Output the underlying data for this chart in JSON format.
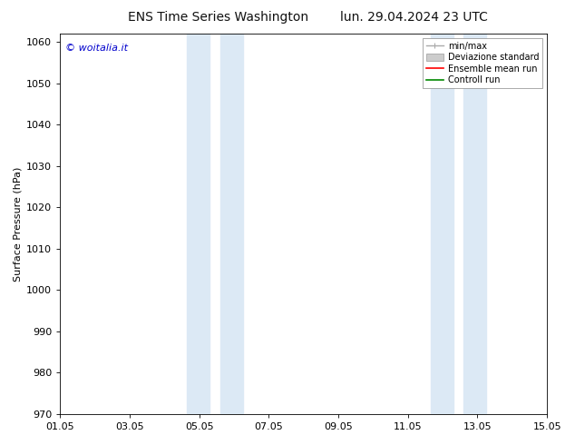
{
  "title_left": "ENS Time Series Washington",
  "title_right": "lun. 29.04.2024 23 UTC",
  "ylabel": "Surface Pressure (hPa)",
  "ylim": [
    970,
    1062
  ],
  "yticks": [
    970,
    980,
    990,
    1000,
    1010,
    1020,
    1030,
    1040,
    1050,
    1060
  ],
  "xtick_labels": [
    "01.05",
    "03.05",
    "05.05",
    "07.05",
    "09.05",
    "11.05",
    "13.05",
    "15.05"
  ],
  "xtick_positions": [
    0,
    2,
    4,
    6,
    8,
    10,
    12,
    14
  ],
  "xlim": [
    0,
    14
  ],
  "shaded_bands": [
    {
      "x_start": 3.5,
      "x_end": 4.5,
      "color": "#ddeeff"
    },
    {
      "x_start": 4.5,
      "x_end": 5.5,
      "color": "#ddeeff"
    },
    {
      "x_start": 10.5,
      "x_end": 11.5,
      "color": "#ddeeff"
    },
    {
      "x_start": 11.5,
      "x_end": 12.5,
      "color": "#ddeeff"
    }
  ],
  "band_pairs": [
    {
      "x_start": 3.5,
      "x_end": 4.35,
      "color": "#cce5f5"
    },
    {
      "x_start": 4.5,
      "x_end": 5.35,
      "color": "#cce5f5"
    },
    {
      "x_start": 10.5,
      "x_end": 11.35,
      "color": "#cce5f5"
    },
    {
      "x_start": 11.5,
      "x_end": 12.35,
      "color": "#cce5f5"
    }
  ],
  "watermark": "© woitalia.it",
  "watermark_color": "#0000cc",
  "legend_items": [
    {
      "label": "min/max",
      "color": "#aaaaaa",
      "type": "line_caps"
    },
    {
      "label": "Deviazione standard",
      "color": "#cccccc",
      "type": "band"
    },
    {
      "label": "Ensemble mean run",
      "color": "#ff0000",
      "type": "line"
    },
    {
      "label": "Controll run",
      "color": "#008800",
      "type": "line"
    }
  ],
  "background_color": "#ffffff",
  "plot_bg_color": "#ffffff",
  "title_fontsize": 10,
  "label_fontsize": 8,
  "tick_fontsize": 8,
  "legend_fontsize": 7
}
